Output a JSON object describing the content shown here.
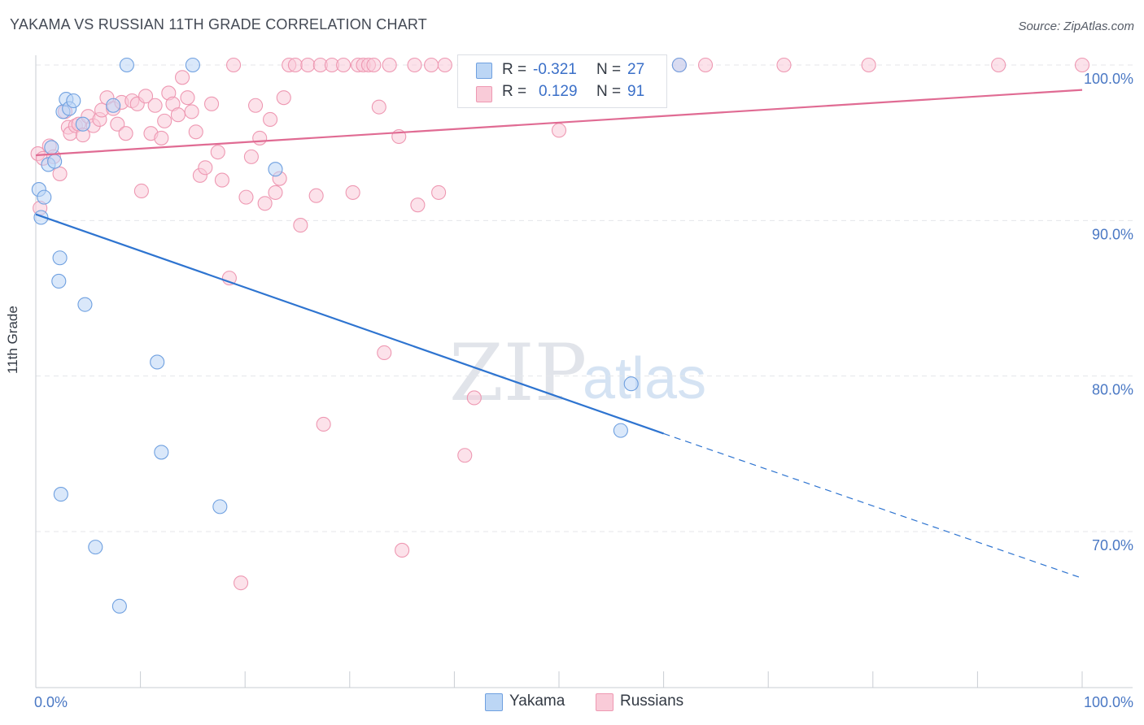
{
  "title": "YAKAMA VS RUSSIAN 11TH GRADE CORRELATION CHART",
  "source": "Source: ZipAtlas.com",
  "watermark": {
    "zip": "ZIP",
    "atlas": "atlas"
  },
  "chart_data": {
    "type": "scatter",
    "title": "YAKAMA VS RUSSIAN 11TH GRADE CORRELATION CHART",
    "xlabel": "",
    "ylabel": "11th Grade",
    "xlim": [
      0,
      100
    ],
    "ylim": [
      60,
      101.5
    ],
    "x_tick_labels": [
      {
        "value": 0,
        "label": "0.0%"
      },
      {
        "value": 100,
        "label": "100.0%"
      }
    ],
    "y_tick_labels": [
      {
        "value": 70,
        "label": "70.0%"
      },
      {
        "value": 80,
        "label": "80.0%"
      },
      {
        "value": 90,
        "label": "90.0%"
      },
      {
        "value": 100,
        "label": "100.0%"
      }
    ],
    "grid": true,
    "legend_position": "top-center",
    "series": [
      {
        "name": "Yakama",
        "color": "#6fa0e0",
        "fill": "#bcd6f5",
        "line_color": "#2e74d0",
        "R": "-0.321",
        "N": "27",
        "trend": {
          "x0": 0,
          "y0": 90.4,
          "x1": 60,
          "y1": 76.3,
          "dashed_to_x": 100,
          "dashed_to_y": 67.0
        },
        "points": [
          [
            0.3,
            92.0
          ],
          [
            0.5,
            90.2
          ],
          [
            0.8,
            91.5
          ],
          [
            1.2,
            93.6
          ],
          [
            1.5,
            94.7
          ],
          [
            1.8,
            93.8
          ],
          [
            2.4,
            72.4
          ],
          [
            2.2,
            86.1
          ],
          [
            2.3,
            87.6
          ],
          [
            2.6,
            97.0
          ],
          [
            2.9,
            97.8
          ],
          [
            3.2,
            97.2
          ],
          [
            3.6,
            97.7
          ],
          [
            4.5,
            96.2
          ],
          [
            4.7,
            84.6
          ],
          [
            5.7,
            69.0
          ],
          [
            7.4,
            97.4
          ],
          [
            8.0,
            65.2
          ],
          [
            8.7,
            100.0
          ],
          [
            11.6,
            80.9
          ],
          [
            12.0,
            75.1
          ],
          [
            15.0,
            100.0
          ],
          [
            17.6,
            71.6
          ],
          [
            22.9,
            93.3
          ],
          [
            55.9,
            76.5
          ],
          [
            56.9,
            79.5
          ],
          [
            61.5,
            100.0
          ]
        ]
      },
      {
        "name": "Russians",
        "color": "#ee98b2",
        "fill": "#f9cbd8",
        "line_color": "#e06b93",
        "R": "0.129",
        "N": "91",
        "trend": {
          "x0": 0,
          "y0": 94.2,
          "x1": 100,
          "y1": 98.4
        },
        "points": [
          [
            0.2,
            94.3
          ],
          [
            0.4,
            90.8
          ],
          [
            0.7,
            94.0
          ],
          [
            1.3,
            94.8
          ],
          [
            1.7,
            94.1
          ],
          [
            2.3,
            93.0
          ],
          [
            2.8,
            97.0
          ],
          [
            3.1,
            96.0
          ],
          [
            3.3,
            95.6
          ],
          [
            3.8,
            96.1
          ],
          [
            4.1,
            96.2
          ],
          [
            4.5,
            95.5
          ],
          [
            5.0,
            96.7
          ],
          [
            5.5,
            96.1
          ],
          [
            6.1,
            96.5
          ],
          [
            6.3,
            97.1
          ],
          [
            6.8,
            97.9
          ],
          [
            7.4,
            97.2
          ],
          [
            7.8,
            96.2
          ],
          [
            8.2,
            97.6
          ],
          [
            8.6,
            95.6
          ],
          [
            9.2,
            97.7
          ],
          [
            9.7,
            97.5
          ],
          [
            10.1,
            91.9
          ],
          [
            10.5,
            98.0
          ],
          [
            11.0,
            95.6
          ],
          [
            11.4,
            97.4
          ],
          [
            12.0,
            95.3
          ],
          [
            12.3,
            96.4
          ],
          [
            12.7,
            98.2
          ],
          [
            13.1,
            97.5
          ],
          [
            13.6,
            96.8
          ],
          [
            14.0,
            99.2
          ],
          [
            14.5,
            97.9
          ],
          [
            14.9,
            97.0
          ],
          [
            15.3,
            95.7
          ],
          [
            15.7,
            92.9
          ],
          [
            16.2,
            93.4
          ],
          [
            16.8,
            97.5
          ],
          [
            17.4,
            94.4
          ],
          [
            17.8,
            92.6
          ],
          [
            18.5,
            86.3
          ],
          [
            18.9,
            100.0
          ],
          [
            19.6,
            66.7
          ],
          [
            20.1,
            91.5
          ],
          [
            20.6,
            94.1
          ],
          [
            21.0,
            97.4
          ],
          [
            21.4,
            95.3
          ],
          [
            21.9,
            91.1
          ],
          [
            22.4,
            96.5
          ],
          [
            22.9,
            91.8
          ],
          [
            23.3,
            92.7
          ],
          [
            23.7,
            97.9
          ],
          [
            24.2,
            100.0
          ],
          [
            24.8,
            100.0
          ],
          [
            25.3,
            89.7
          ],
          [
            26.0,
            100.0
          ],
          [
            26.8,
            91.6
          ],
          [
            27.2,
            100.0
          ],
          [
            27.5,
            76.9
          ],
          [
            28.3,
            100.0
          ],
          [
            29.4,
            100.0
          ],
          [
            30.3,
            91.8
          ],
          [
            30.8,
            100.0
          ],
          [
            31.3,
            100.0
          ],
          [
            31.8,
            100.0
          ],
          [
            32.3,
            100.0
          ],
          [
            32.8,
            97.3
          ],
          [
            33.3,
            81.5
          ],
          [
            33.8,
            100.0
          ],
          [
            34.7,
            95.4
          ],
          [
            35.0,
            68.8
          ],
          [
            36.2,
            100.0
          ],
          [
            36.5,
            91.0
          ],
          [
            37.8,
            100.0
          ],
          [
            38.5,
            91.8
          ],
          [
            39.1,
            100.0
          ],
          [
            41.0,
            74.9
          ],
          [
            41.2,
            100.0
          ],
          [
            41.9,
            78.6
          ],
          [
            43.5,
            100.0
          ],
          [
            47.0,
            100.0
          ],
          [
            50.0,
            95.8
          ],
          [
            51.0,
            100.0
          ],
          [
            59.2,
            100.0
          ],
          [
            61.5,
            100.0
          ],
          [
            64.0,
            100.0
          ],
          [
            71.5,
            100.0
          ],
          [
            79.6,
            100.0
          ],
          [
            92.0,
            100.0
          ],
          [
            100.0,
            100.0
          ]
        ]
      }
    ]
  },
  "legend": {
    "rows": [
      {
        "r_label": "R =",
        "r_value": "-0.321",
        "n_label": "N =",
        "n_value": "27"
      },
      {
        "r_label": "R =",
        "r_value": "0.129",
        "n_label": "N =",
        "n_value": "91"
      }
    ]
  },
  "bottom_legend": [
    {
      "label": "Yakama"
    },
    {
      "label": "Russians"
    }
  ]
}
